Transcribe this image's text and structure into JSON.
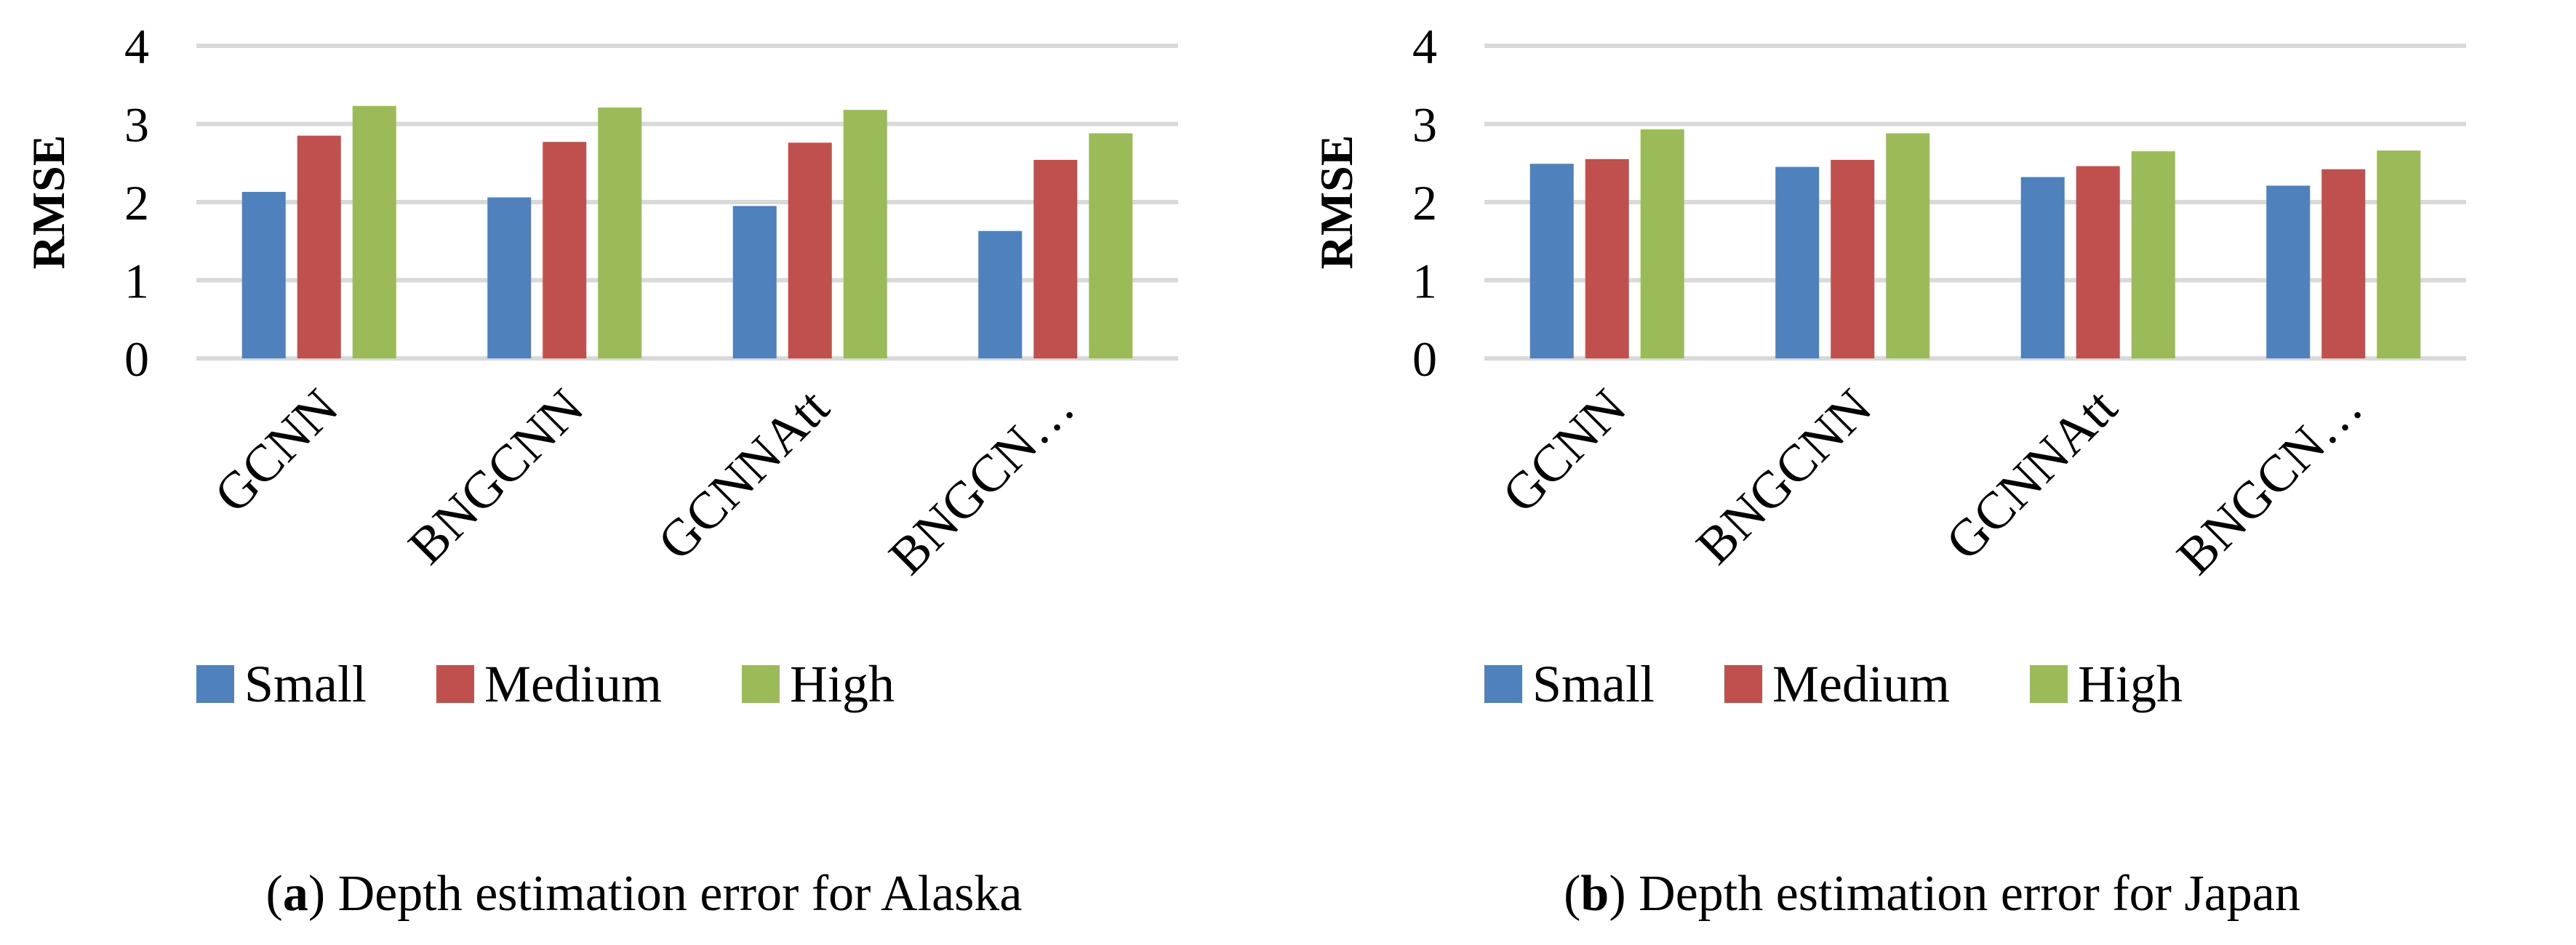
{
  "chart_data": [
    {
      "type": "bar",
      "title": "",
      "ylabel": "RMSE",
      "xlabel": "",
      "ylim": [
        0,
        4
      ],
      "yticks": [
        "0",
        "1",
        "2",
        "3",
        "4"
      ],
      "categories": [
        "GCNN",
        "BNGCNN",
        "GCNNAtt",
        "BNGCN…"
      ],
      "series": [
        {
          "name": "Small",
          "color": "#4f81bd",
          "values": [
            2.13,
            2.06,
            1.95,
            1.63
          ]
        },
        {
          "name": "Medium",
          "color": "#c0504d",
          "values": [
            2.85,
            2.77,
            2.76,
            2.54
          ]
        },
        {
          "name": "High",
          "color": "#9bbb59",
          "values": [
            3.23,
            3.21,
            3.18,
            2.88
          ]
        }
      ],
      "legend": "bottom",
      "grid": true,
      "caption": {
        "letter": "a",
        "text": "Depth estimation error for Alaska"
      }
    },
    {
      "type": "bar",
      "title": "",
      "ylabel": "RMSE",
      "xlabel": "",
      "ylim": [
        0,
        4
      ],
      "yticks": [
        "0",
        "1",
        "2",
        "3",
        "4"
      ],
      "categories": [
        "GCNN",
        "BNGCNN",
        "GCNNAtt",
        "BNGCN…"
      ],
      "series": [
        {
          "name": "Small",
          "color": "#4f81bd",
          "values": [
            2.49,
            2.45,
            2.32,
            2.21
          ]
        },
        {
          "name": "Medium",
          "color": "#c0504d",
          "values": [
            2.55,
            2.54,
            2.46,
            2.42
          ]
        },
        {
          "name": "High",
          "color": "#9bbb59",
          "values": [
            2.93,
            2.88,
            2.65,
            2.66
          ]
        }
      ],
      "legend": "bottom",
      "grid": true,
      "caption": {
        "letter": "b",
        "text": "Depth estimation error for Japan"
      }
    }
  ]
}
